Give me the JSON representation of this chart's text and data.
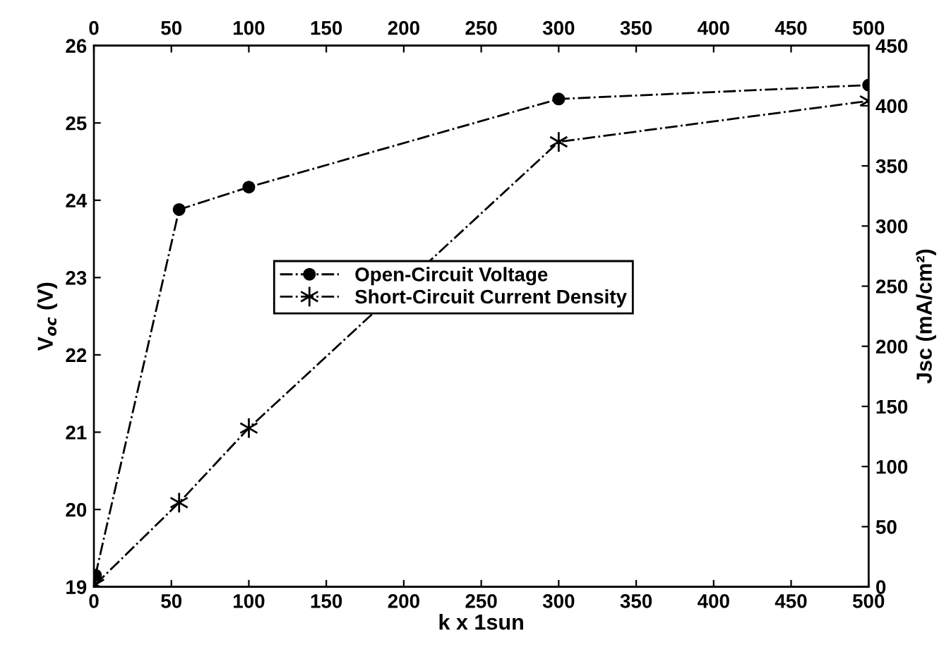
{
  "chart_data": {
    "type": "line",
    "xlabel": "k x 1sun",
    "ylabel": "V$_{oc}$ (V)",
    "y2label": "Jsc (mA/cm²)",
    "x": [
      1,
      55,
      100,
      300,
      500
    ],
    "series": [
      {
        "name": "Open-Circuit Voltage",
        "color": "#000000",
        "marker": "circle",
        "line_style": "dashdot",
        "values": [
          19.15,
          23.88,
          24.17,
          25.31,
          25.49
        ]
      },
      {
        "name": "Short-Circuit Current Density",
        "color": "#000000",
        "marker": "cross",
        "line_style": "dashdot",
        "axis": "y2",
        "values": [
          2,
          70,
          132,
          370,
          404
        ]
      }
    ],
    "xlim": [
      0,
      500
    ],
    "xticks": [
      0,
      50,
      100,
      150,
      200,
      250,
      300,
      350,
      400,
      450,
      500
    ],
    "x2lim": [
      0,
      500
    ],
    "x2ticks": [
      0,
      50,
      100,
      150,
      200,
      250,
      300,
      350,
      400,
      450,
      500
    ],
    "ylim": [
      19,
      26
    ],
    "yticks": [
      19,
      20,
      21,
      22,
      23,
      24,
      25,
      26
    ],
    "y2lim": [
      0,
      450
    ],
    "y2ticks": [
      0,
      50,
      100,
      150,
      200,
      250,
      300,
      350,
      400,
      450
    ],
    "grid": false,
    "legend": "center"
  }
}
